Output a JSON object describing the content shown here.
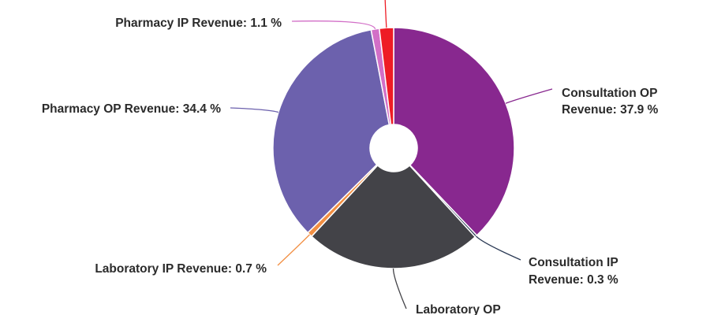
{
  "chart_data": {
    "type": "pie",
    "variant": "donut",
    "slices": [
      {
        "label": "Consultation OP Revenue",
        "label_lines": [
          "Consultation OP",
          "Revenue: 37.9 %"
        ],
        "value": 37.9,
        "color": "#88288f"
      },
      {
        "label": "Consultation IP Revenue",
        "label_lines": [
          "Consultation IP",
          "Revenue: 0.3 %"
        ],
        "value": 0.3,
        "color": "#2b3a55"
      },
      {
        "label": "Laboratory OP Revenue",
        "label_lines": [
          "Laboratory OP"
        ],
        "value": 23.7,
        "color": "#434348"
      },
      {
        "label": "Laboratory IP Revenue",
        "label_lines": [
          "Laboratory IP Revenue: 0.7 %"
        ],
        "value": 0.7,
        "color": "#f28f43"
      },
      {
        "label": "Pharmacy OP Revenue",
        "label_lines": [
          "Pharmacy OP Revenue: 34.4 %"
        ],
        "value": 34.4,
        "color": "#6c61ad"
      },
      {
        "label": "Pharmacy IP Revenue",
        "label_lines": [
          "Pharmacy IP Revenue: 1.1 %"
        ],
        "value": 1.1,
        "color": "#d26fc7"
      },
      {
        "label": "",
        "label_lines": [],
        "value": 1.9,
        "color": "#ee1c25"
      }
    ],
    "legend": "none",
    "grid": false
  }
}
